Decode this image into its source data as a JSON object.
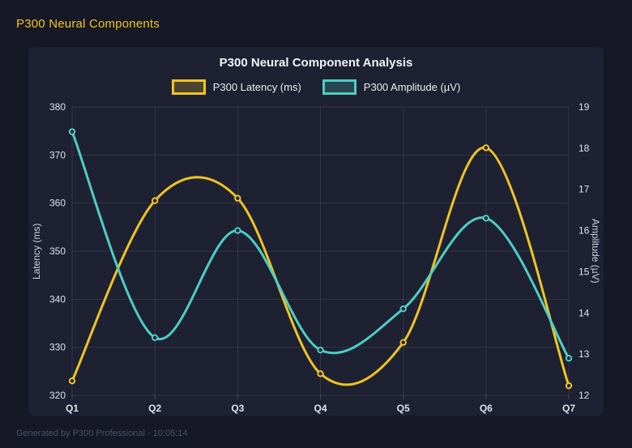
{
  "header": {
    "title": "P300 Neural Components"
  },
  "footer": {
    "text": "Generated by P300 Professional - 10:05:14"
  },
  "colors": {
    "background": "#161825",
    "panel": "#1d2132",
    "accent_yellow": "#f0c420",
    "accent_teal": "#4ecdc4",
    "grid": "rgba(255,255,255,0.09)",
    "tick_text": "#e0e2ea"
  },
  "chart_data": {
    "type": "line",
    "title": "P300 Neural Component Analysis",
    "categories": [
      "Q1",
      "Q2",
      "Q3",
      "Q4",
      "Q5",
      "Q6",
      "Q7"
    ],
    "series": [
      {
        "name": "P300 Latency (ms)",
        "axis": "left",
        "color": "#f0c420",
        "values": [
          323,
          360.5,
          361,
          324.5,
          331,
          371.5,
          322
        ]
      },
      {
        "name": "P300 Amplitude (µV)",
        "axis": "right",
        "color": "#4ecdc4",
        "values": [
          18.4,
          13.4,
          16.0,
          13.1,
          14.1,
          16.3,
          12.9
        ]
      }
    ],
    "left_axis": {
      "label": "Latency (ms)",
      "min": 320,
      "max": 380,
      "ticks": [
        320,
        330,
        340,
        350,
        360,
        370,
        380
      ]
    },
    "right_axis": {
      "label": "Amplitude (µV)",
      "min": 12,
      "max": 19,
      "ticks": [
        12,
        13,
        14,
        15,
        16,
        17,
        18,
        19
      ]
    },
    "grid": true,
    "smooth": true,
    "legend_position": "top"
  }
}
